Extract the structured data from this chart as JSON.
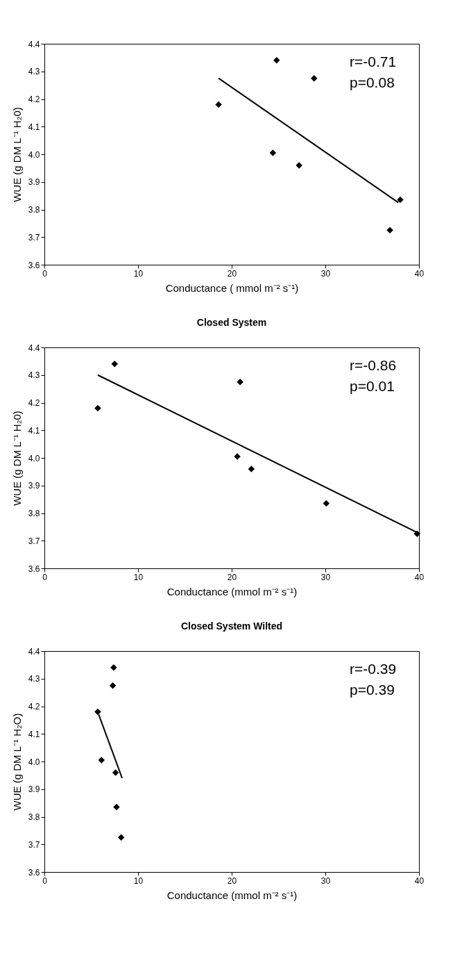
{
  "chart_data": [
    {
      "type": "scatter",
      "xlabel": "Conductance ( mmol m⁻² s⁻¹)",
      "ylabel": "WUE (g DM L⁻¹ H₂0)",
      "xlim": [
        0,
        40
      ],
      "xticks": [
        0,
        10,
        20,
        30,
        40
      ],
      "ylim": [
        3.6,
        4.4
      ],
      "yticks": [
        {
          "value": 3.6,
          "label": "3.6"
        },
        {
          "value": 3.7,
          "label": "3.7"
        },
        {
          "value": 3.8,
          "label": "3.8"
        },
        {
          "value": 3.9,
          "label": "3.9"
        },
        {
          "value": 4.0,
          "label": "4.0"
        },
        {
          "value": 4.1,
          "label": "4.1"
        },
        {
          "value": 4.2,
          "label": "4.2"
        },
        {
          "value": 4.3,
          "label": "4.3"
        },
        {
          "value": 4.4,
          "label": "4.4"
        }
      ],
      "annotations": [
        "r=-0.71",
        "p=0.08"
      ],
      "series": [
        {
          "type": "scatter",
          "marker": "diamond",
          "color": "#000000",
          "x": [
            18.6,
            24.8,
            28.8,
            24.4,
            27.2,
            38.0,
            36.9
          ],
          "values": [
            4.18,
            4.34,
            4.275,
            4.005,
            3.96,
            3.835,
            3.725
          ]
        },
        {
          "type": "line",
          "color": "#000000",
          "x": [
            18.6,
            37.8
          ],
          "values": [
            4.275,
            3.825
          ]
        }
      ]
    },
    {
      "type": "scatter",
      "title": "Closed System",
      "xlabel": "Conductance (mmol m⁻² s⁻¹)",
      "ylabel": "WUE (g DM L⁻¹ H₂0)",
      "xlim": [
        0,
        40
      ],
      "xticks": [
        0,
        10,
        20,
        30,
        40
      ],
      "ylim": [
        3.6,
        4.4
      ],
      "yticks": [
        {
          "value": 3.6,
          "label": "3.6"
        },
        {
          "value": 3.7,
          "label": "3.7"
        },
        {
          "value": 3.8,
          "label": "3.8"
        },
        {
          "value": 3.9,
          "label": "3.9"
        },
        {
          "value": 4.0,
          "label": "4.0"
        },
        {
          "value": 4.1,
          "label": "4.1"
        },
        {
          "value": 4.2,
          "label": "4.2"
        },
        {
          "value": 4.3,
          "label": "4.3"
        },
        {
          "value": 4.4,
          "label": "4.4"
        }
      ],
      "annotations": [
        "r=-0.86",
        "p=0.01"
      ],
      "series": [
        {
          "type": "scatter",
          "marker": "diamond",
          "color": "#000000",
          "x": [
            5.7,
            7.5,
            20.9,
            20.6,
            22.1,
            30.1,
            39.8
          ],
          "values": [
            4.18,
            4.34,
            4.275,
            4.005,
            3.96,
            3.835,
            3.725
          ]
        },
        {
          "type": "line",
          "color": "#000000",
          "x": [
            5.7,
            39.8
          ],
          "values": [
            4.3,
            3.73
          ]
        }
      ]
    },
    {
      "type": "scatter",
      "title": "Closed System Wilted",
      "xlabel": "Conductance (mmol m⁻² s⁻¹)",
      "ylabel": "WUE (g DM L⁻¹ H₂O)",
      "xlim": [
        0,
        40
      ],
      "xticks": [
        0,
        10,
        20,
        30,
        40
      ],
      "ylim": [
        3.6,
        4.4
      ],
      "yticks": [
        {
          "value": 3.6,
          "label": "3.6"
        },
        {
          "value": 3.7,
          "label": "3.7"
        },
        {
          "value": 3.8,
          "label": "3.8"
        },
        {
          "value": 3.9,
          "label": "3.9"
        },
        {
          "value": 4.0,
          "label": "4.0"
        },
        {
          "value": 4.1,
          "label": "4.1"
        },
        {
          "value": 4.2,
          "label": "4.2"
        },
        {
          "value": 4.3,
          "label": "4.3"
        },
        {
          "value": 4.4,
          "label": "4.4"
        }
      ],
      "annotations": [
        "r=-0.39",
        "p=0.39"
      ],
      "series": [
        {
          "type": "scatter",
          "marker": "diamond",
          "color": "#000000",
          "x": [
            5.7,
            7.4,
            7.3,
            6.1,
            7.6,
            7.7,
            8.2
          ],
          "values": [
            4.18,
            4.34,
            4.275,
            4.005,
            3.96,
            3.835,
            3.725
          ]
        },
        {
          "type": "line",
          "color": "#000000",
          "x": [
            5.8,
            8.3
          ],
          "values": [
            4.17,
            3.94
          ]
        }
      ]
    }
  ]
}
